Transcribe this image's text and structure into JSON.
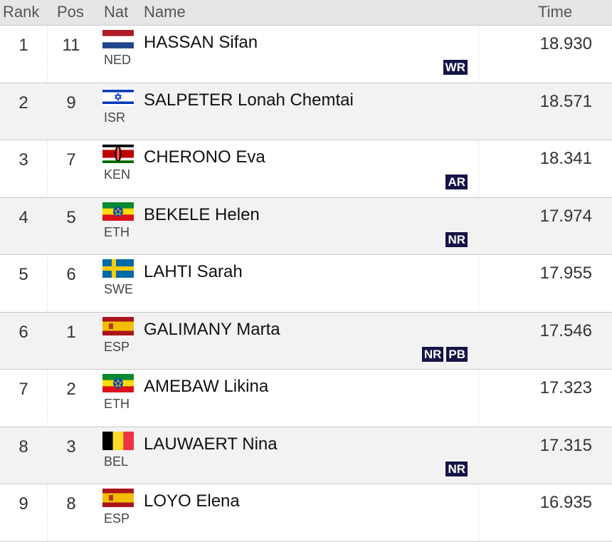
{
  "header": {
    "rank": "Rank",
    "pos": "Pos",
    "nat": "Nat",
    "name": "Name",
    "time": "Time"
  },
  "rows": [
    {
      "rank": 1,
      "pos": 11,
      "nat": "NED",
      "name": "HASSAN Sifan",
      "time": "18.930",
      "records": [
        "WR"
      ]
    },
    {
      "rank": 2,
      "pos": 9,
      "nat": "ISR",
      "name": "SALPETER Lonah Chemtai",
      "time": "18.571",
      "records": []
    },
    {
      "rank": 3,
      "pos": 7,
      "nat": "KEN",
      "name": "CHERONO Eva",
      "time": "18.341",
      "records": [
        "AR"
      ]
    },
    {
      "rank": 4,
      "pos": 5,
      "nat": "ETH",
      "name": "BEKELE Helen",
      "time": "17.974",
      "records": [
        "NR"
      ]
    },
    {
      "rank": 5,
      "pos": 6,
      "nat": "SWE",
      "name": "LAHTI Sarah",
      "time": "17.955",
      "records": []
    },
    {
      "rank": 6,
      "pos": 1,
      "nat": "ESP",
      "name": "GALIMANY Marta",
      "time": "17.546",
      "records": [
        "NR",
        "PB"
      ]
    },
    {
      "rank": 7,
      "pos": 2,
      "nat": "ETH",
      "name": "AMEBAW Likina",
      "time": "17.323",
      "records": []
    },
    {
      "rank": 8,
      "pos": 3,
      "nat": "BEL",
      "name": "LAUWAERT Nina",
      "time": "17.315",
      "records": [
        "NR"
      ]
    },
    {
      "rank": 9,
      "pos": 8,
      "nat": "ESP",
      "name": "LOYO Elena",
      "time": "16.935",
      "records": []
    }
  ]
}
